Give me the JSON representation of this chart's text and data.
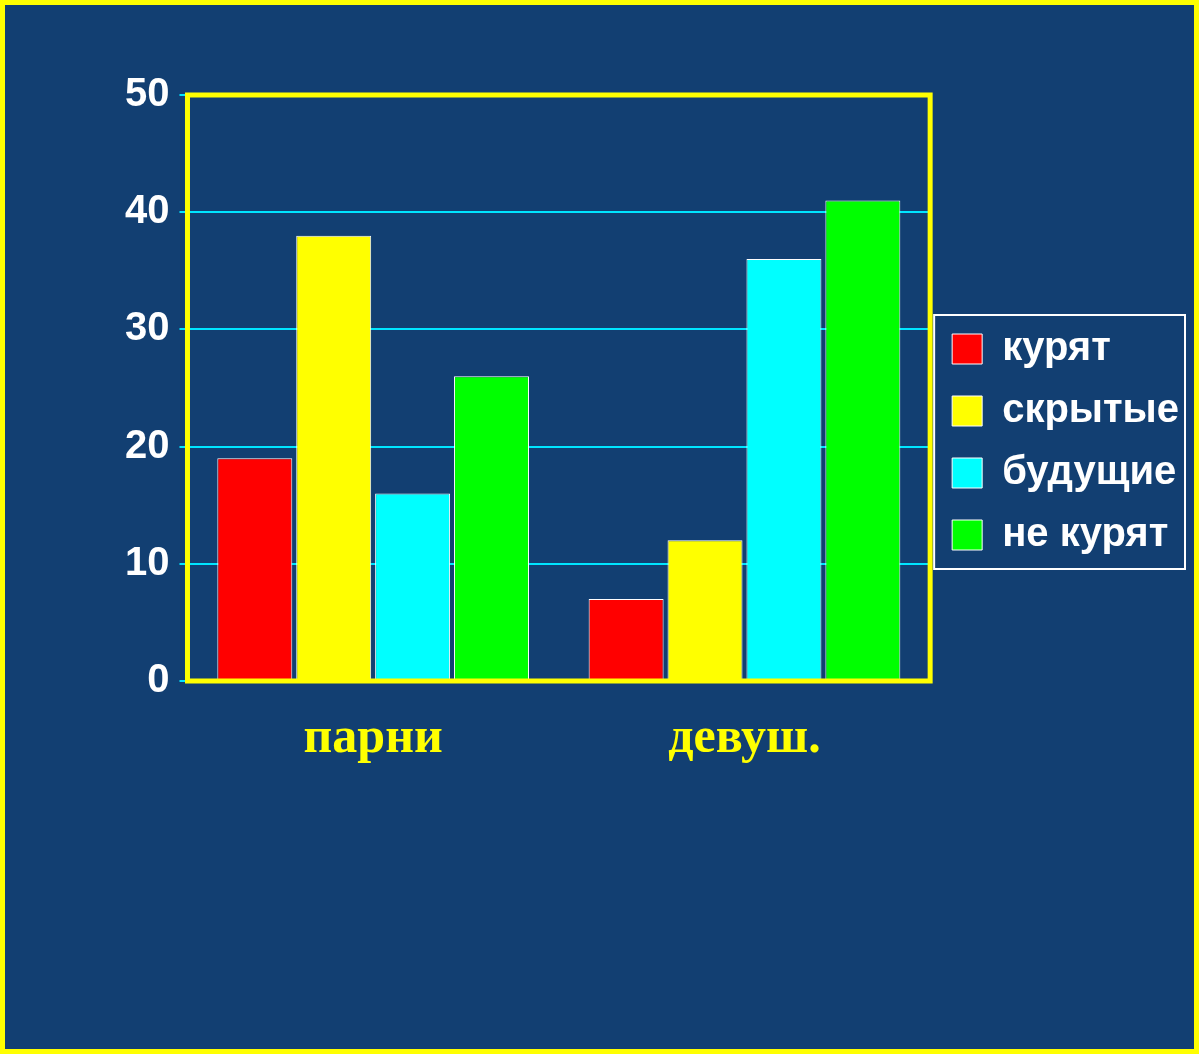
{
  "chart_data": {
    "type": "bar",
    "categories": [
      "парни",
      "девуш."
    ],
    "series": [
      {
        "name": "курят",
        "color": "#ff0000",
        "values": [
          19,
          7
        ]
      },
      {
        "name": "скрытые",
        "color": "#ffff00",
        "values": [
          38,
          12
        ]
      },
      {
        "name": "будущие",
        "color": "#00ffff",
        "values": [
          16,
          36
        ]
      },
      {
        "name": "не курят",
        "color": "#00ff00",
        "values": [
          26,
          41
        ]
      }
    ],
    "ylim": [
      0,
      50
    ],
    "yticks": [
      0,
      10,
      20,
      30,
      40,
      50
    ],
    "grid": "y",
    "legend": "right"
  }
}
